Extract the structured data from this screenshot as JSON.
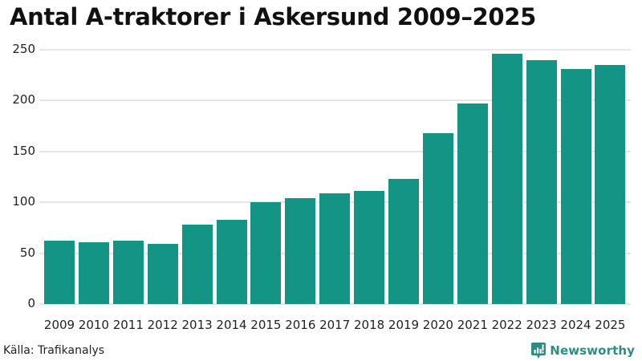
{
  "chart_data": {
    "type": "bar",
    "title": "Antal A-traktorer i Askersund 2009–2025",
    "xlabel": "",
    "ylabel": "",
    "categories": [
      "2009",
      "2010",
      "2011",
      "2012",
      "2013",
      "2014",
      "2015",
      "2016",
      "2017",
      "2018",
      "2019",
      "2020",
      "2021",
      "2022",
      "2023",
      "2024",
      "2025"
    ],
    "values": [
      62,
      61,
      62,
      59,
      78,
      83,
      100,
      104,
      109,
      111,
      123,
      168,
      197,
      246,
      240,
      231,
      235
    ],
    "ylim": [
      0,
      250
    ],
    "yticks": [
      "0",
      "50",
      "100",
      "150",
      "200",
      "250"
    ],
    "grid": true,
    "legend": null,
    "bar_color": "#139485"
  },
  "header": {
    "title": "Antal A-traktorer i Askersund 2009–2025"
  },
  "footer": {
    "source": "Källa: Trafikanalys",
    "brand": "Newsworthy",
    "brand_color": "#2a8f80"
  }
}
